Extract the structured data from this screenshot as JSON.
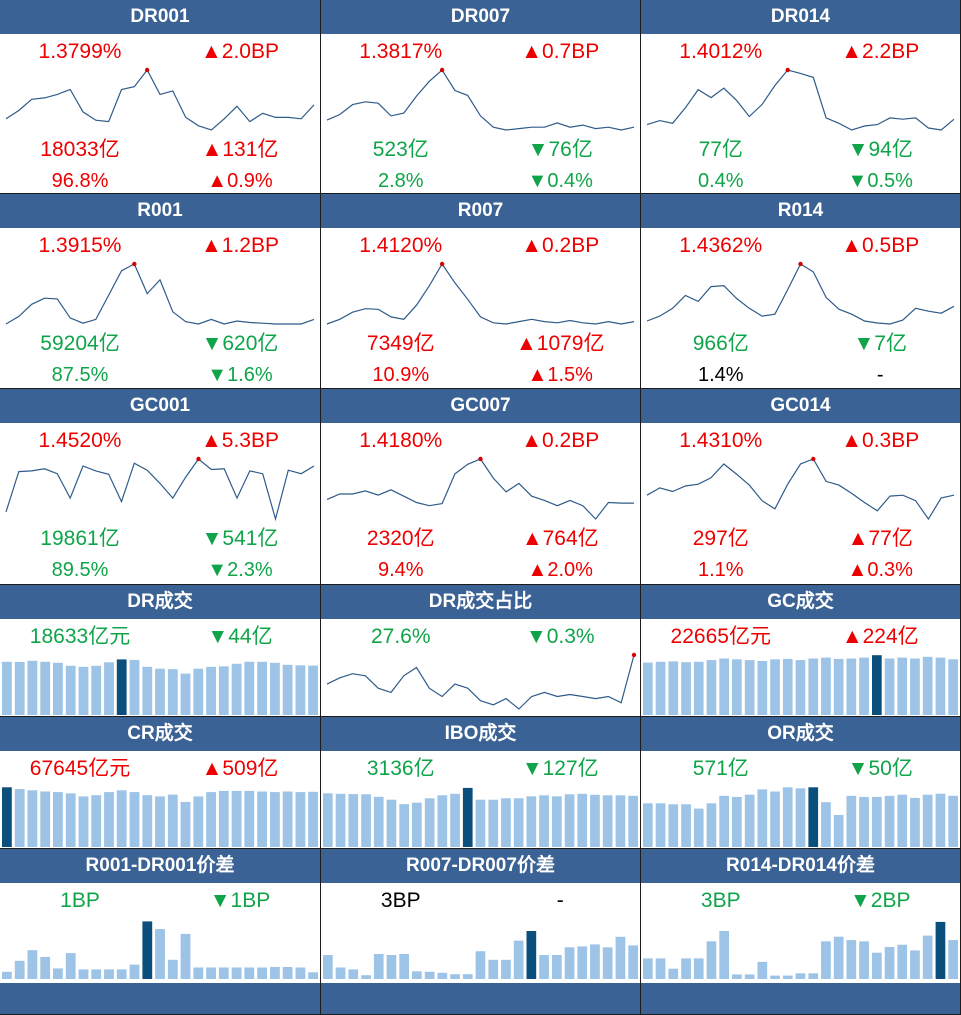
{
  "colors": {
    "header_bg": "#3b6294",
    "up": "#ee0000",
    "down": "#10a44a",
    "neutral": "#000000",
    "line": "#2f5b8a",
    "bar": "#9dc3e6",
    "bar_highlight": "#0b4f7c",
    "peak_dot": "#d60000"
  },
  "panels": [
    {
      "title": "DR001",
      "kind": "line",
      "rows": [
        {
          "left": {
            "text": "1.3799%",
            "dir": "up"
          },
          "right": {
            "text": "▲2.0BP",
            "dir": "up"
          }
        },
        {
          "left": {
            "text": "18033亿",
            "dir": "up"
          },
          "right": {
            "text": "▲131亿",
            "dir": "up"
          }
        },
        {
          "left": {
            "text": "96.8%",
            "dir": "up"
          },
          "right": {
            "text": "▲0.9%",
            "dir": "up"
          }
        }
      ],
      "chart_data": {
        "type": "line",
        "values": [
          1.31,
          1.322,
          1.338,
          1.34,
          1.345,
          1.352,
          1.32,
          1.308,
          1.306,
          1.352,
          1.356,
          1.38,
          1.345,
          1.35,
          1.312,
          1.3,
          1.294,
          1.31,
          1.328,
          1.306,
          1.318,
          1.312,
          1.312,
          1.31,
          1.33
        ],
        "peak_index": 11
      }
    },
    {
      "title": "DR007",
      "kind": "line",
      "rows": [
        {
          "left": {
            "text": "1.3817%",
            "dir": "up"
          },
          "right": {
            "text": "▲0.7BP",
            "dir": "up"
          }
        },
        {
          "left": {
            "text": "523亿",
            "dir": "down"
          },
          "right": {
            "text": "▼76亿",
            "dir": "down"
          }
        },
        {
          "left": {
            "text": "2.8%",
            "dir": "down"
          },
          "right": {
            "text": "▼0.4%",
            "dir": "down"
          }
        }
      ],
      "chart_data": {
        "type": "line",
        "values": [
          1.31,
          1.318,
          1.332,
          1.336,
          1.334,
          1.316,
          1.32,
          1.344,
          1.365,
          1.381,
          1.352,
          1.345,
          1.316,
          1.3,
          1.296,
          1.298,
          1.3,
          1.3,
          1.306,
          1.3,
          1.303,
          1.298,
          1.3,
          1.296,
          1.3
        ],
        "peak_index": 9
      }
    },
    {
      "title": "DR014",
      "kind": "line",
      "rows": [
        {
          "left": {
            "text": "1.4012%",
            "dir": "up"
          },
          "right": {
            "text": "▲2.2BP",
            "dir": "up"
          }
        },
        {
          "left": {
            "text": "77亿",
            "dir": "down"
          },
          "right": {
            "text": "▼94亿",
            "dir": "down"
          }
        },
        {
          "left": {
            "text": "0.4%",
            "dir": "down"
          },
          "right": {
            "text": "▼0.5%",
            "dir": "down"
          }
        }
      ],
      "chart_data": {
        "type": "line",
        "values": [
          1.32,
          1.326,
          1.322,
          1.345,
          1.372,
          1.36,
          1.374,
          1.356,
          1.332,
          1.35,
          1.378,
          1.401,
          1.396,
          1.39,
          1.33,
          1.322,
          1.312,
          1.318,
          1.32,
          1.33,
          1.328,
          1.33,
          1.315,
          1.312,
          1.328
        ],
        "peak_index": 11
      }
    },
    {
      "title": "R001",
      "kind": "line",
      "rows": [
        {
          "left": {
            "text": "1.3915%",
            "dir": "up"
          },
          "right": {
            "text": "▲1.2BP",
            "dir": "up"
          }
        },
        {
          "left": {
            "text": "59204亿",
            "dir": "down"
          },
          "right": {
            "text": "▼620亿",
            "dir": "down"
          }
        },
        {
          "left": {
            "text": "87.5%",
            "dir": "down"
          },
          "right": {
            "text": "▼1.6%",
            "dir": "down"
          }
        }
      ],
      "chart_data": {
        "type": "line",
        "values": [
          1.312,
          1.322,
          1.338,
          1.346,
          1.345,
          1.32,
          1.313,
          1.318,
          1.35,
          1.382,
          1.391,
          1.352,
          1.37,
          1.328,
          1.315,
          1.312,
          1.318,
          1.312,
          1.316,
          1.314,
          1.313,
          1.312,
          1.312,
          1.312,
          1.318
        ],
        "peak_index": 10
      }
    },
    {
      "title": "R007",
      "kind": "line",
      "rows": [
        {
          "left": {
            "text": "1.4120%",
            "dir": "up"
          },
          "right": {
            "text": "▲0.2BP",
            "dir": "up"
          }
        },
        {
          "left": {
            "text": "7349亿",
            "dir": "up"
          },
          "right": {
            "text": "▲1079亿",
            "dir": "up"
          }
        },
        {
          "left": {
            "text": "10.9%",
            "dir": "up"
          },
          "right": {
            "text": "▲1.5%",
            "dir": "up"
          }
        }
      ],
      "chart_data": {
        "type": "line",
        "values": [
          1.31,
          1.318,
          1.33,
          1.336,
          1.335,
          1.322,
          1.318,
          1.342,
          1.375,
          1.412,
          1.38,
          1.352,
          1.322,
          1.312,
          1.31,
          1.314,
          1.318,
          1.314,
          1.312,
          1.316,
          1.312,
          1.31,
          1.314,
          1.31,
          1.314
        ],
        "peak_index": 9
      }
    },
    {
      "title": "R014",
      "kind": "line",
      "rows": [
        {
          "left": {
            "text": "1.4362%",
            "dir": "up"
          },
          "right": {
            "text": "▲0.5BP",
            "dir": "up"
          }
        },
        {
          "left": {
            "text": "966亿",
            "dir": "down"
          },
          "right": {
            "text": "▼7亿",
            "dir": "down"
          }
        },
        {
          "left": {
            "text": "1.4%",
            "dir": "neutral"
          },
          "right": {
            "text": "-",
            "dir": "neutral"
          }
        }
      ],
      "chart_data": {
        "type": "line",
        "values": [
          1.32,
          1.33,
          1.346,
          1.372,
          1.36,
          1.39,
          1.392,
          1.366,
          1.346,
          1.33,
          1.334,
          1.384,
          1.436,
          1.42,
          1.368,
          1.344,
          1.334,
          1.32,
          1.316,
          1.314,
          1.322,
          1.346,
          1.34,
          1.336,
          1.35
        ],
        "peak_index": 12
      }
    },
    {
      "title": "GC001",
      "kind": "line",
      "rows": [
        {
          "left": {
            "text": "1.4520%",
            "dir": "up"
          },
          "right": {
            "text": "▲5.3BP",
            "dir": "up"
          }
        },
        {
          "left": {
            "text": "19861亿",
            "dir": "down"
          },
          "right": {
            "text": "▼541亿",
            "dir": "down"
          }
        },
        {
          "left": {
            "text": "89.5%",
            "dir": "down"
          },
          "right": {
            "text": "▼2.3%",
            "dir": "down"
          }
        }
      ],
      "chart_data": {
        "type": "line",
        "values": [
          1.3,
          1.416,
          1.418,
          1.424,
          1.41,
          1.34,
          1.432,
          1.418,
          1.408,
          1.33,
          1.44,
          1.42,
          1.382,
          1.34,
          1.4,
          1.452,
          1.422,
          1.424,
          1.34,
          1.418,
          1.41,
          1.28,
          1.42,
          1.41,
          1.432
        ],
        "peak_index": 15
      }
    },
    {
      "title": "GC007",
      "kind": "line",
      "rows": [
        {
          "left": {
            "text": "1.4180%",
            "dir": "up"
          },
          "right": {
            "text": "▲0.2BP",
            "dir": "up"
          }
        },
        {
          "left": {
            "text": "2320亿",
            "dir": "up"
          },
          "right": {
            "text": "▲764亿",
            "dir": "up"
          }
        },
        {
          "left": {
            "text": "9.4%",
            "dir": "up"
          },
          "right": {
            "text": "▲2.0%",
            "dir": "up"
          }
        }
      ],
      "chart_data": {
        "type": "line",
        "values": [
          1.342,
          1.352,
          1.352,
          1.358,
          1.35,
          1.36,
          1.348,
          1.336,
          1.33,
          1.334,
          1.39,
          1.408,
          1.418,
          1.382,
          1.356,
          1.372,
          1.348,
          1.34,
          1.33,
          1.34,
          1.33,
          1.305,
          1.336,
          1.335,
          1.335
        ],
        "peak_index": 12
      }
    },
    {
      "title": "GC014",
      "kind": "line",
      "rows": [
        {
          "left": {
            "text": "1.4310%",
            "dir": "up"
          },
          "right": {
            "text": "▲0.3BP",
            "dir": "up"
          }
        },
        {
          "left": {
            "text": "297亿",
            "dir": "up"
          },
          "right": {
            "text": "▲77亿",
            "dir": "up"
          }
        },
        {
          "left": {
            "text": "1.1%",
            "dir": "up"
          },
          "right": {
            "text": "▲0.3%",
            "dir": "up"
          }
        }
      ],
      "chart_data": {
        "type": "line",
        "values": [
          1.352,
          1.368,
          1.36,
          1.372,
          1.376,
          1.39,
          1.42,
          1.398,
          1.374,
          1.34,
          1.322,
          1.376,
          1.42,
          1.431,
          1.382,
          1.374,
          1.356,
          1.336,
          1.318,
          1.35,
          1.352,
          1.34,
          1.3,
          1.346,
          1.352
        ],
        "peak_index": 13
      }
    },
    {
      "title": "DR成交",
      "kind": "bar",
      "rows": [
        {
          "left": {
            "text": "18633亿元",
            "dir": "down"
          },
          "right": {
            "text": "▼44亿",
            "dir": "down"
          }
        }
      ],
      "chart_data": {
        "type": "bar",
        "values": [
          17400,
          17380,
          17500,
          17400,
          17300,
          17000,
          16900,
          17000,
          17350,
          17650,
          17600,
          16900,
          16700,
          16650,
          16200,
          16700,
          16900,
          16950,
          17200,
          17400,
          17400,
          17300,
          17100,
          17050,
          17020
        ],
        "highlight_index": 9,
        "ylim": [
          12000,
          18500
        ]
      }
    },
    {
      "title": "DR成交占比",
      "kind": "line",
      "rows": [
        {
          "left": {
            "text": "27.6%",
            "dir": "down"
          },
          "right": {
            "text": "▼0.3%",
            "dir": "down"
          }
        }
      ],
      "chart_data": {
        "type": "line",
        "values": [
          26.2,
          26.5,
          26.7,
          26.6,
          26.0,
          25.8,
          26.6,
          27.0,
          26.0,
          25.6,
          26.2,
          26.0,
          25.4,
          25.2,
          25.5,
          25.0,
          25.6,
          25.8,
          25.6,
          25.7,
          25.6,
          25.5,
          25.6,
          25.3,
          27.6
        ],
        "peak_index": 24
      }
    },
    {
      "title": "GC成交",
      "kind": "bar",
      "rows": [
        {
          "left": {
            "text": "22665亿元",
            "dir": "up"
          },
          "right": {
            "text": "▲224亿",
            "dir": "up"
          }
        }
      ],
      "chart_data": {
        "type": "bar",
        "values": [
          21300,
          21400,
          21450,
          21350,
          21400,
          21600,
          21800,
          21700,
          21600,
          21500,
          21700,
          21750,
          21600,
          21800,
          21900,
          21750,
          21800,
          21900,
          22200,
          21800,
          21900,
          21800,
          22000,
          21900,
          21700
        ],
        "highlight_index": 18,
        "ylim": [
          15000,
          22700
        ]
      }
    },
    {
      "title": "CR成交",
      "kind": "bar",
      "rows": [
        {
          "left": {
            "text": "67645亿元",
            "dir": "up"
          },
          "right": {
            "text": "▲509亿",
            "dir": "up"
          }
        }
      ],
      "chart_data": {
        "type": "bar",
        "values": [
          67800,
          67500,
          67300,
          67100,
          67000,
          66800,
          66300,
          66500,
          67000,
          67300,
          67000,
          66500,
          66300,
          66600,
          65400,
          66300,
          67000,
          67200,
          67200,
          67200,
          67100,
          67000,
          67100,
          67000,
          67050
        ],
        "highlight_index": 0,
        "ylim": [
          58000,
          68500
        ]
      }
    },
    {
      "title": "IBO成交",
      "kind": "bar",
      "rows": [
        {
          "left": {
            "text": "3136亿",
            "dir": "down"
          },
          "right": {
            "text": "▼127亿",
            "dir": "down"
          }
        }
      ],
      "chart_data": {
        "type": "bar",
        "values": [
          3090,
          3080,
          3075,
          3070,
          3020,
          2960,
          2870,
          2900,
          2990,
          3050,
          3080,
          3200,
          2960,
          2960,
          2990,
          2990,
          3030,
          3050,
          3030,
          3070,
          3080,
          3060,
          3050,
          3050,
          3040
        ],
        "highlight_index": 11,
        "ylim": [
          2000,
          3300
        ]
      }
    },
    {
      "title": "OR成交",
      "kind": "bar",
      "rows": [
        {
          "left": {
            "text": "571亿",
            "dir": "down"
          },
          "right": {
            "text": "▼50亿",
            "dir": "down"
          }
        }
      ],
      "chart_data": {
        "type": "bar",
        "values": [
          410,
          410,
          400,
          400,
          360,
          410,
          480,
          470,
          490,
          540,
          520,
          560,
          550,
          560,
          420,
          300,
          480,
          470,
          470,
          480,
          490,
          460,
          490,
          500,
          480
        ],
        "highlight_index": 13,
        "ylim": [
          0,
          600
        ]
      }
    },
    {
      "title": "R001-DR001价差",
      "kind": "bar",
      "rows": [
        {
          "left": {
            "text": "1BP",
            "dir": "down"
          },
          "right": {
            "text": "▼1BP",
            "dir": "down"
          }
        }
      ],
      "chart_data": {
        "type": "bar",
        "values": [
          1.5,
          3.8,
          6.0,
          4.6,
          2.2,
          5.4,
          2.0,
          2.0,
          2.0,
          2.0,
          3.0,
          12.0,
          10.4,
          4.0,
          9.4,
          2.4,
          2.4,
          2.4,
          2.4,
          2.4,
          2.4,
          2.5,
          2.5,
          2.4,
          1.4
        ],
        "highlight_index": 11,
        "ylim": [
          0,
          12.5
        ]
      }
    },
    {
      "title": "R007-DR007价差",
      "kind": "bar",
      "rows": [
        {
          "left": {
            "text": "3BP",
            "dir": "neutral"
          },
          "right": {
            "text": "-",
            "dir": "neutral"
          }
        }
      ],
      "chart_data": {
        "type": "bar",
        "values": [
          5.0,
          2.4,
          2.0,
          0.8,
          5.2,
          5.0,
          5.2,
          1.6,
          1.5,
          1.3,
          1.0,
          1.0,
          5.8,
          4.0,
          4.0,
          8.0,
          10.0,
          5.0,
          5.0,
          6.6,
          6.8,
          7.2,
          6.6,
          8.8,
          7.0
        ],
        "highlight_index": 16,
        "ylim": [
          0,
          12.5
        ]
      }
    },
    {
      "title": "R014-DR014价差",
      "kind": "bar",
      "rows": [
        {
          "left": {
            "text": "3BP",
            "dir": "down"
          },
          "right": {
            "text": "▼2BP",
            "dir": "down"
          }
        }
      ],
      "chart_data": {
        "type": "bar",
        "values": [
          3.6,
          3.6,
          1.8,
          3.6,
          3.6,
          6.6,
          8.4,
          0.8,
          0.8,
          3.0,
          0.6,
          0.6,
          1.0,
          1.0,
          6.6,
          7.4,
          6.8,
          6.6,
          4.6,
          5.6,
          6.0,
          5.0,
          7.6,
          10.0,
          6.8
        ],
        "highlight_index": 23,
        "ylim": [
          0,
          10.5
        ]
      }
    }
  ]
}
